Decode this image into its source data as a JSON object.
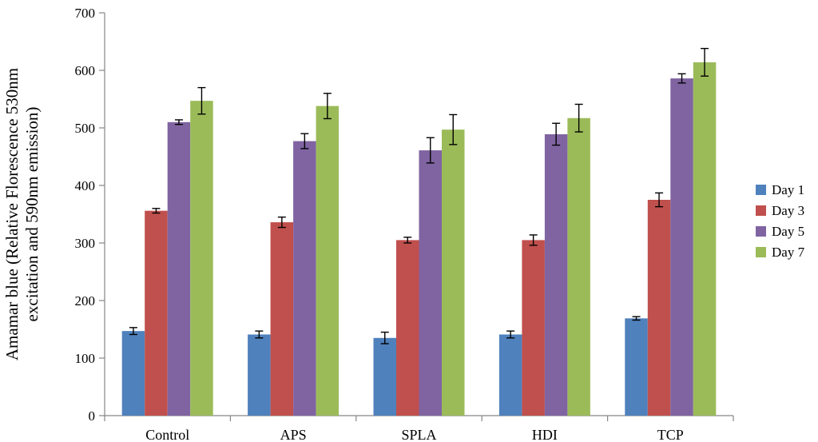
{
  "chart_data": {
    "type": "bar",
    "title": "",
    "xlabel": "",
    "ylabel_lines": [
      "Amamar blue (Relative Florescence 530nm",
      "excitation and 590nm emission)"
    ],
    "categories": [
      "Control",
      "APS",
      "SPLA",
      "HDI",
      "TCP"
    ],
    "ylim": [
      0,
      700
    ],
    "yticks": [
      0,
      100,
      200,
      300,
      400,
      500,
      600,
      700
    ],
    "legend_position": "right",
    "series": [
      {
        "name": "Day 1",
        "color": "#4F81BD",
        "values": [
          147,
          141,
          135,
          141,
          169
        ],
        "errors": [
          6,
          6,
          10,
          6,
          3
        ]
      },
      {
        "name": "Day 3",
        "color": "#C0504D",
        "values": [
          356,
          336,
          305,
          305,
          375
        ],
        "errors": [
          4,
          9,
          5,
          9,
          12
        ]
      },
      {
        "name": "Day 5",
        "color": "#8064A2",
        "values": [
          510,
          477,
          461,
          489,
          586
        ],
        "errors": [
          4,
          13,
          22,
          19,
          8
        ]
      },
      {
        "name": "Day 7",
        "color": "#9BBB59",
        "values": [
          547,
          538,
          497,
          517,
          614
        ],
        "errors": [
          23,
          22,
          26,
          24,
          24
        ]
      }
    ]
  }
}
